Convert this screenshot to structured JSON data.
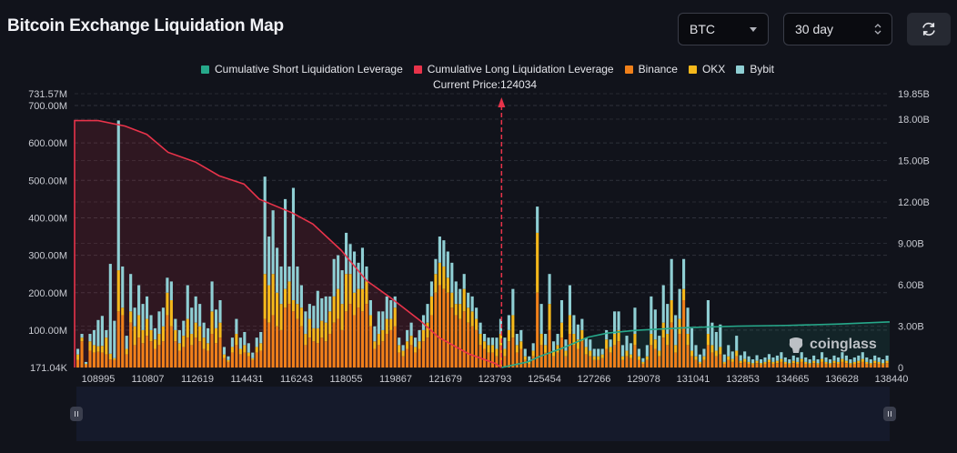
{
  "header": {
    "title": "Bitcoin Exchange Liquidation Map",
    "coin_select": "BTC",
    "range_select": "30 day",
    "refresh_icon": "refresh-icon"
  },
  "legend": [
    {
      "label": "Cumulative Short Liquidation Leverage",
      "color": "#26a88a"
    },
    {
      "label": "Cumulative Long Liquidation Leverage",
      "color": "#e8334a"
    },
    {
      "label": "Binance",
      "color": "#f0801a"
    },
    {
      "label": "OKX",
      "color": "#f5b81b"
    },
    {
      "label": "Bybit",
      "color": "#8fcfd4"
    }
  ],
  "current_price_label": "Current Price:124034",
  "watermark": "coinglass",
  "chart_data": {
    "type": "bar",
    "title": "Bitcoin Exchange Liquidation Map",
    "current_price": 124034,
    "x_range": [
      108995,
      138440
    ],
    "x_ticks": [
      "108995",
      "110807",
      "112619",
      "114431",
      "116243",
      "118055",
      "119867",
      "121679",
      "123793",
      "125454",
      "127266",
      "129078",
      "131041",
      "132853",
      "134665",
      "136628",
      "138440"
    ],
    "y_left": {
      "label": "Liquidation Leverage",
      "min": 0.17104,
      "max": 731.57,
      "unit": "M",
      "ticks": [
        "171.04K",
        "100.00M",
        "200.00M",
        "300.00M",
        "400.00M",
        "500.00M",
        "600.00M",
        "700.00M",
        "731.57M"
      ],
      "tick_values": [
        0.17104,
        100,
        200,
        300,
        400,
        500,
        600,
        700,
        731.57
      ]
    },
    "y_right": {
      "label": "Cumulative Leverage",
      "min": 0,
      "max": 19.85,
      "unit": "B",
      "ticks": [
        "0",
        "3.00B",
        "6.00B",
        "9.00B",
        "12.00B",
        "15.00B",
        "18.00B",
        "19.85B"
      ],
      "tick_values": [
        0,
        3,
        6,
        9,
        12,
        15,
        18,
        19.85
      ]
    },
    "grid": true,
    "legend_position": "top-center",
    "bar_series_note": "values in millions, stacked Binance/OKX/Bybit per price bucket",
    "bars": {
      "binance": [
        20,
        70,
        8,
        45,
        40,
        42,
        40,
        35,
        22,
        20,
        150,
        140,
        35,
        120,
        60,
        80,
        65,
        85,
        70,
        50,
        60,
        70,
        140,
        110,
        70,
        45,
        55,
        80,
        60,
        80,
        70,
        50,
        45,
        90,
        65,
        80,
        25,
        15,
        40,
        60,
        35,
        40,
        30,
        20,
        40,
        45,
        130,
        120,
        140,
        110,
        100,
        160,
        170,
        150,
        130,
        110,
        60,
        80,
        70,
        65,
        80,
        70,
        90,
        120,
        130,
        100,
        150,
        170,
        140,
        160,
        150,
        170,
        110,
        50,
        60,
        70,
        90,
        100,
        110,
        40,
        30,
        50,
        60,
        40,
        50,
        70,
        80,
        140,
        200,
        220,
        210,
        200,
        160,
        140,
        130,
        150,
        120,
        110,
        100,
        60,
        50,
        40,
        40,
        30,
        60,
        30,
        70,
        80,
        40,
        50,
        20,
        10,
        30,
        200,
        60,
        40,
        100,
        30,
        40,
        80,
        30,
        90,
        60,
        50,
        70,
        35,
        30,
        20,
        20,
        25,
        50,
        40,
        60,
        70,
        20,
        30,
        25,
        60,
        20,
        10,
        20,
        60,
        50,
        30,
        80,
        60,
        120,
        40,
        90,
        180,
        60,
        30,
        20,
        10,
        20,
        60,
        40,
        30,
        35,
        10,
        20,
        15,
        30,
        12,
        15,
        10,
        8,
        12,
        8,
        10,
        14,
        10,
        12,
        15,
        10,
        8,
        12,
        10,
        15,
        10,
        8,
        12,
        8,
        15,
        10,
        8,
        12,
        10,
        15,
        12,
        8,
        10,
        12,
        15,
        10,
        8,
        12,
        10,
        8,
        12
      ],
      "okx": [
        15,
        10,
        2,
        25,
        20,
        15,
        18,
        45,
        15,
        5,
        110,
        20,
        15,
        30,
        50,
        60,
        35,
        45,
        30,
        25,
        30,
        40,
        60,
        70,
        30,
        20,
        30,
        50,
        30,
        40,
        40,
        30,
        20,
        60,
        40,
        40,
        10,
        5,
        15,
        30,
        15,
        20,
        10,
        5,
        15,
        20,
        120,
        100,
        110,
        90,
        70,
        50,
        60,
        30,
        40,
        50,
        30,
        50,
        35,
        40,
        45,
        50,
        60,
        70,
        80,
        70,
        100,
        80,
        60,
        50,
        60,
        60,
        30,
        20,
        30,
        30,
        40,
        30,
        50,
        20,
        15,
        20,
        25,
        15,
        20,
        30,
        40,
        50,
        50,
        60,
        60,
        40,
        40,
        30,
        40,
        60,
        40,
        40,
        30,
        30,
        20,
        20,
        20,
        20,
        30,
        20,
        30,
        60,
        20,
        20,
        10,
        5,
        15,
        160,
        30,
        20,
        70,
        15,
        20,
        40,
        15,
        50,
        30,
        25,
        30,
        20,
        15,
        10,
        10,
        10,
        25,
        15,
        30,
        30,
        10,
        15,
        10,
        30,
        10,
        5,
        10,
        30,
        25,
        15,
        40,
        30,
        60,
        20,
        40,
        30,
        30,
        15,
        10,
        5,
        10,
        30,
        20,
        15,
        20,
        5,
        10,
        8,
        15,
        6,
        8,
        5,
        4,
        6,
        4,
        5,
        7,
        5,
        6,
        8,
        5,
        4,
        6,
        5,
        8,
        5,
        4,
        6,
        4,
        8,
        5,
        4,
        6,
        5,
        8,
        6,
        4,
        5,
        6,
        8,
        5,
        4,
        6,
        5,
        4,
        6
      ],
      "bybit": [
        15,
        10,
        5,
        20,
        40,
        70,
        80,
        20,
        240,
        100,
        400,
        110,
        35,
        100,
        50,
        80,
        70,
        60,
        40,
        30,
        60,
        50,
        40,
        50,
        30,
        35,
        40,
        90,
        70,
        70,
        60,
        40,
        40,
        80,
        50,
        60,
        20,
        10,
        25,
        40,
        30,
        35,
        25,
        15,
        25,
        30,
        260,
        130,
        170,
        120,
        100,
        240,
        40,
        300,
        100,
        60,
        60,
        40,
        60,
        100,
        60,
        70,
        40,
        100,
        90,
        90,
        110,
        80,
        110,
        70,
        110,
        40,
        40,
        40,
        60,
        50,
        60,
        50,
        30,
        20,
        15,
        30,
        35,
        25,
        30,
        40,
        50,
        40,
        40,
        70,
        70,
        70,
        80,
        60,
        40,
        40,
        40,
        40,
        30,
        30,
        20,
        20,
        20,
        30,
        40,
        30,
        40,
        70,
        30,
        30,
        20,
        15,
        20,
        70,
        80,
        30,
        80,
        25,
        30,
        60,
        30,
        80,
        50,
        40,
        30,
        25,
        30,
        20,
        20,
        15,
        25,
        20,
        60,
        50,
        30,
        40,
        30,
        70,
        20,
        10,
        30,
        100,
        80,
        40,
        100,
        80,
        110,
        80,
        80,
        80,
        70,
        60,
        30,
        20,
        20,
        90,
        60,
        50,
        60,
        20,
        30,
        20,
        40,
        15,
        20,
        15,
        10,
        15,
        10,
        12,
        15,
        12,
        14,
        18,
        12,
        10,
        14,
        12,
        18,
        12,
        10,
        14,
        10,
        18,
        12,
        10,
        14,
        12,
        18,
        14,
        10,
        12,
        14,
        18,
        12,
        10,
        14,
        12,
        10,
        14
      ]
    },
    "long_cumulative_B": {
      "x": [
        108995,
        110000,
        110807,
        111600,
        112619,
        113500,
        114431,
        115000,
        116243,
        117000,
        118055,
        119000,
        119867,
        121000,
        121679,
        122800,
        123793,
        124034
      ],
      "y": [
        17.9,
        17.5,
        16.9,
        15.6,
        14.9,
        13.9,
        13.3,
        12.2,
        11.2,
        10.4,
        8.5,
        6.3,
        5.1,
        3.4,
        2.2,
        1.0,
        0.3,
        0
      ]
    },
    "short_cumulative_B": {
      "x": [
        124034,
        125000,
        125454,
        126300,
        127266,
        128000,
        129078,
        131041,
        132853,
        134665,
        136628,
        138440
      ],
      "y": [
        0,
        0.4,
        0.8,
        1.4,
        2.2,
        2.5,
        2.7,
        2.9,
        3.0,
        3.05,
        3.15,
        3.3
      ]
    }
  }
}
